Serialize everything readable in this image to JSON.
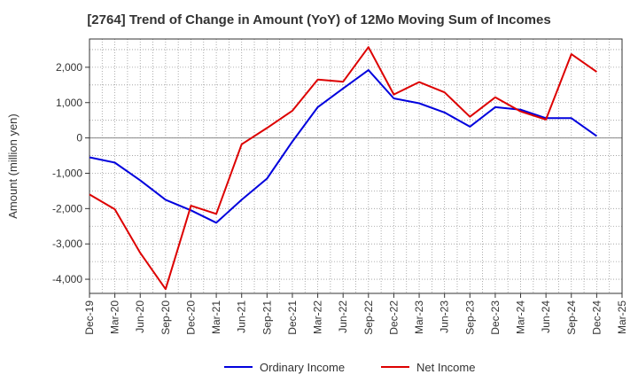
{
  "chart_data": {
    "type": "line",
    "title": "[2764]  Trend of Change in Amount (YoY) of 12Mo Moving Sum of Incomes",
    "ylabel": "Amount (million yen)",
    "xlabel": "",
    "categories": [
      "Dec-19",
      "Mar-20",
      "Jun-20",
      "Sep-20",
      "Dec-20",
      "Mar-21",
      "Jun-21",
      "Sep-21",
      "Dec-21",
      "Mar-22",
      "Jun-22",
      "Sep-22",
      "Dec-22",
      "Mar-23",
      "Jun-23",
      "Sep-23",
      "Dec-23",
      "Mar-24",
      "Jun-24",
      "Sep-24",
      "Dec-24",
      "Mar-25"
    ],
    "yticks": [
      -4000,
      -3000,
      -2000,
      -1000,
      0,
      1000,
      2000
    ],
    "ytick_labels": [
      "-4,000",
      "-3,000",
      "-2,000",
      "-1,000",
      "0",
      "1,000",
      "2,000"
    ],
    "ylim": [
      -4400,
      2800
    ],
    "grid": true,
    "legend_position": "bottom",
    "series": [
      {
        "name": "Ordinary Income",
        "color": "#0000dd",
        "values": [
          -550,
          -700,
          -1200,
          -1750,
          -2050,
          -2400,
          -1750,
          -1150,
          -100,
          870,
          1400,
          1920,
          1120,
          980,
          720,
          320,
          870,
          800,
          560,
          560,
          50,
          null
        ]
      },
      {
        "name": "Net Income",
        "color": "#dd0000",
        "values": [
          -1600,
          -2020,
          -3250,
          -4280,
          -1920,
          -2150,
          -180,
          280,
          770,
          1650,
          1590,
          2570,
          1230,
          1580,
          1290,
          600,
          1150,
          750,
          520,
          2370,
          1870,
          null
        ]
      }
    ]
  }
}
